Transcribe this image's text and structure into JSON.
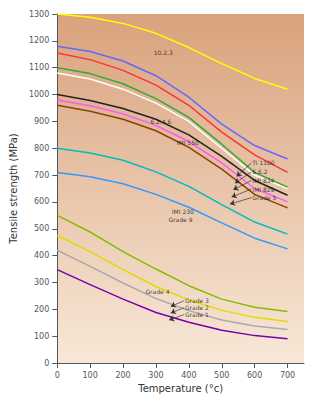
{
  "chart_data": {
    "type": "line",
    "xlabel": "Temperature (°c)",
    "ylabel": "Tensile strength (MPa)",
    "x": [
      0,
      100,
      200,
      300,
      400,
      500,
      600,
      700
    ],
    "xlim": [
      0,
      750
    ],
    "ylim": [
      0,
      1300
    ],
    "xticks": [
      0,
      100,
      200,
      300,
      400,
      500,
      600,
      700
    ],
    "yticks": [
      0,
      100,
      200,
      300,
      400,
      500,
      600,
      700,
      800,
      900,
      1000,
      1100,
      1200,
      1300
    ],
    "grid": false,
    "series": [
      {
        "name": "10.2.3",
        "color": "#FFFF00",
        "values": [
          1300,
          1288,
          1265,
          1228,
          1175,
          1115,
          1060,
          1020
        ]
      },
      {
        "name": "6.2.4.6",
        "color": "#6666FF",
        "values": [
          1180,
          1160,
          1125,
          1070,
          990,
          890,
          810,
          760
        ]
      },
      {
        "name": "IMI 550",
        "color": "#FF3333",
        "values": [
          1155,
          1130,
          1090,
          1035,
          960,
          860,
          775,
          710
        ]
      },
      {
        "name": "Ti 1100",
        "color": "#FFFFFF",
        "values": [
          1080,
          1058,
          1020,
          968,
          900,
          800,
          700,
          650
        ]
      },
      {
        "name": "6.6.2",
        "color": "#33AA33",
        "values": [
          1100,
          1078,
          1040,
          985,
          915,
          815,
          710,
          655
        ]
      },
      {
        "name": "IMI 834",
        "color": "#222222",
        "values": [
          1000,
          978,
          948,
          908,
          850,
          770,
          680,
          625
        ]
      },
      {
        "name": "IMI 829",
        "color": "#FF55FF",
        "values": [
          980,
          958,
          928,
          885,
          825,
          745,
          650,
          600
        ]
      },
      {
        "name": "Grade 5",
        "color": "#884400",
        "values": [
          960,
          938,
          908,
          865,
          803,
          722,
          628,
          578
        ]
      },
      {
        "name": "IMI 230",
        "color": "#00BBBB",
        "values": [
          800,
          782,
          755,
          712,
          658,
          590,
          525,
          480
        ]
      },
      {
        "name": "Grade 9",
        "color": "#3399FF",
        "values": [
          710,
          694,
          668,
          628,
          580,
          522,
          465,
          425
        ]
      },
      {
        "name": "Grade 4",
        "color": "#88BB00",
        "values": [
          550,
          488,
          415,
          350,
          288,
          238,
          208,
          192
        ]
      },
      {
        "name": "Grade 3",
        "color": "#DDDD00",
        "values": [
          475,
          415,
          348,
          285,
          235,
          196,
          170,
          155
        ]
      },
      {
        "name": "Grade 2",
        "color": "#AAAAAA",
        "values": [
          420,
          360,
          298,
          240,
          195,
          160,
          138,
          125
        ]
      },
      {
        "name": "Grade 1",
        "color": "#7700AA",
        "values": [
          348,
          292,
          238,
          188,
          152,
          122,
          102,
          90
        ]
      }
    ],
    "annotations": [
      {
        "text": "10.2.3",
        "x": 290,
        "y": 1155
      },
      {
        "text": "6.2.4.6",
        "x": 280,
        "y": 900
      },
      {
        "text": "IMI 550",
        "x": 360,
        "y": 820
      },
      {
        "text": "Ti 1100",
        "x": 590,
        "y": 745,
        "arrow_to": [
          545,
          695
        ]
      },
      {
        "text": "6.6.2",
        "x": 590,
        "y": 712,
        "arrow_to": [
          540,
          670
        ]
      },
      {
        "text": "IMI 834",
        "x": 590,
        "y": 680,
        "arrow_to": [
          535,
          645
        ]
      },
      {
        "text": "IMI 829",
        "x": 590,
        "y": 648,
        "arrow_to": [
          530,
          618
        ]
      },
      {
        "text": "Grade 5",
        "x": 590,
        "y": 616,
        "arrow_to": [
          525,
          592
        ]
      },
      {
        "text": "IMI 230",
        "x": 345,
        "y": 566
      },
      {
        "text": "Grade 9",
        "x": 335,
        "y": 536
      },
      {
        "text": "Grade 4",
        "x": 265,
        "y": 268
      },
      {
        "text": "Grade 3",
        "x": 385,
        "y": 232,
        "arrow_to": [
          345,
          210
        ]
      },
      {
        "text": "Grade 2",
        "x": 385,
        "y": 206,
        "arrow_to": [
          345,
          186
        ]
      },
      {
        "text": "Grade 1",
        "x": 385,
        "y": 180,
        "arrow_to": [
          340,
          160
        ]
      }
    ]
  }
}
